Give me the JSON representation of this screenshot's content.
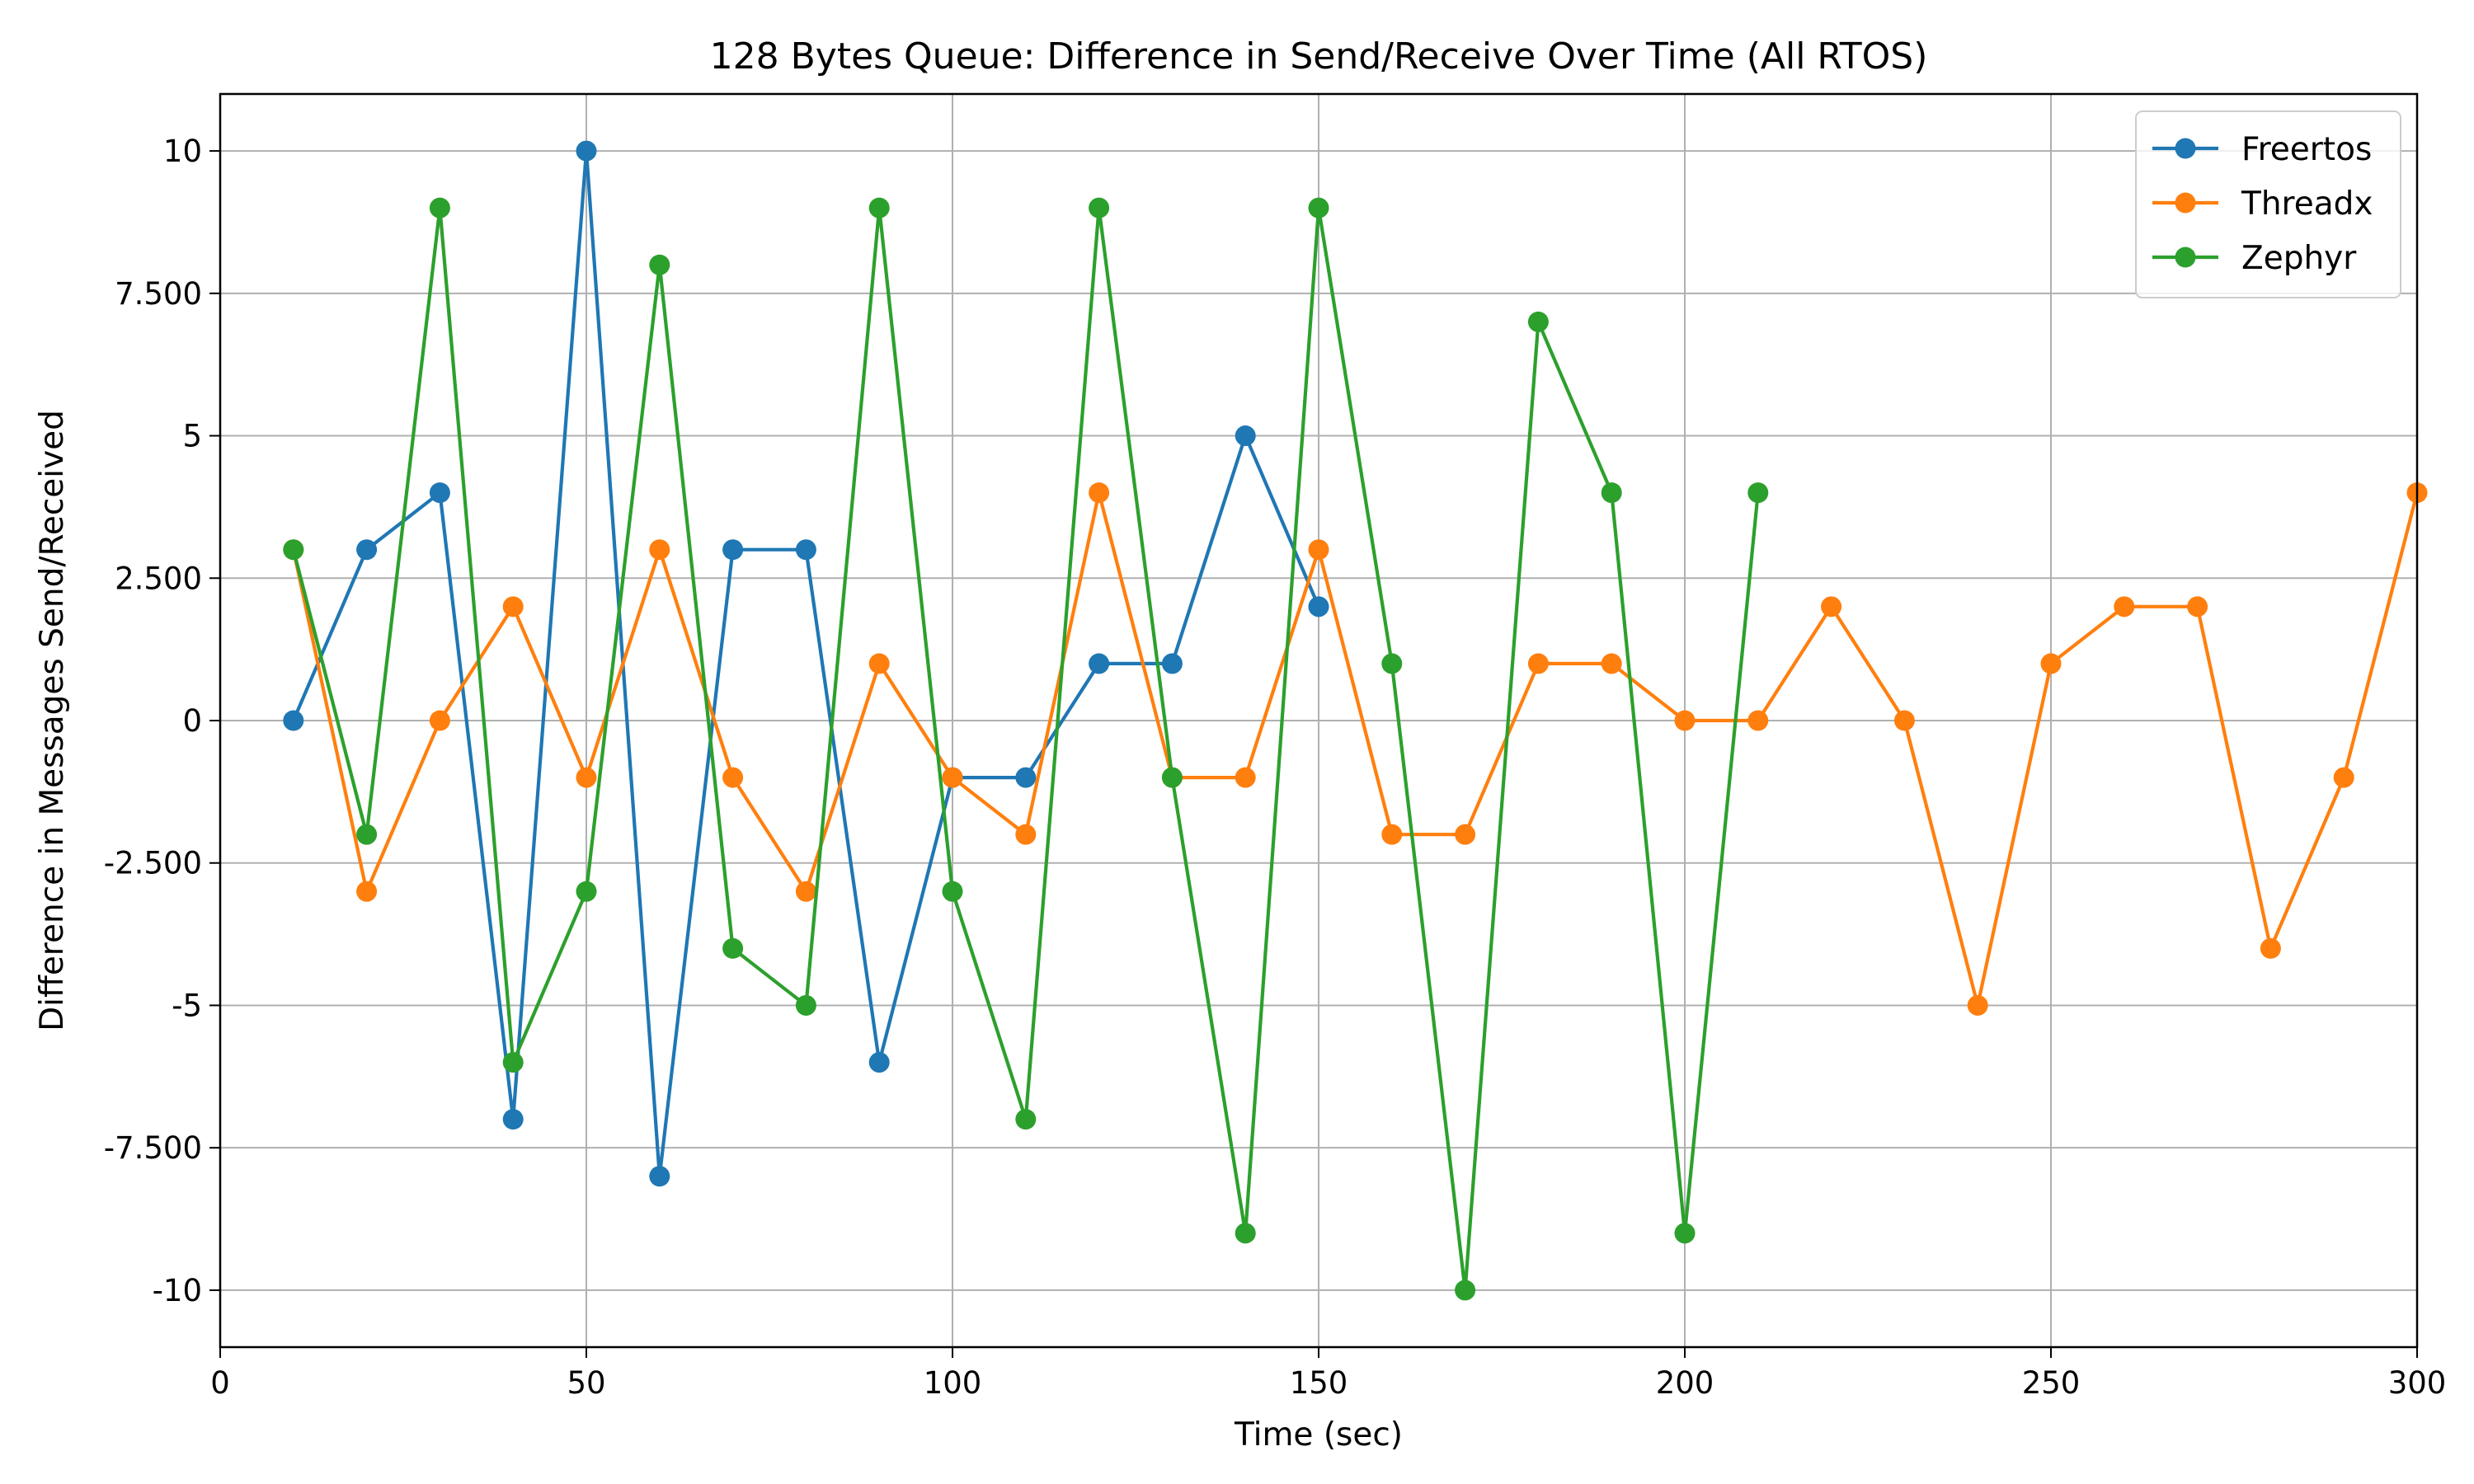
{
  "chart_data": {
    "type": "line",
    "title": "128 Bytes Queue: Difference in Send/Receive Over Time (All RTOS)",
    "xlabel": "Time (sec)",
    "ylabel": "Difference in Messages Send/Received",
    "xlim": [
      0,
      300
    ],
    "ylim": [
      -11,
      11
    ],
    "x_ticks": [
      0,
      50,
      100,
      150,
      200,
      250,
      300
    ],
    "x_tick_labels": [
      "0",
      "50",
      "100",
      "150",
      "200",
      "250",
      "300"
    ],
    "y_ticks": [
      10,
      7.5,
      5,
      2.5,
      0,
      -2.5,
      -5,
      -7.5,
      -10
    ],
    "y_tick_labels": [
      "10",
      "7.500",
      "5",
      "2.500",
      "0",
      "-2.500",
      "-5",
      "-7.500",
      "-10"
    ],
    "grid": true,
    "legend_position": "top-right",
    "series": [
      {
        "name": "Freertos",
        "color": "#1f77b4",
        "x": [
          10,
          20,
          30,
          40,
          50,
          60,
          70,
          80,
          90,
          100,
          110,
          120,
          130,
          140,
          150
        ],
        "values": [
          0,
          3,
          4,
          -7,
          10,
          -8,
          3,
          3,
          -6,
          -1,
          -1,
          1,
          1,
          5,
          2
        ]
      },
      {
        "name": "Threadx",
        "color": "#ff7f0e",
        "x": [
          10,
          20,
          30,
          40,
          50,
          60,
          70,
          80,
          90,
          100,
          110,
          120,
          130,
          140,
          150,
          160,
          170,
          180,
          190,
          200,
          210,
          220,
          230,
          240,
          250,
          260,
          270,
          280,
          290,
          300
        ],
        "values": [
          3,
          -3,
          0,
          2,
          -1,
          3,
          -1,
          -3,
          1,
          -1,
          -2,
          4,
          -1,
          -1,
          3,
          -2,
          -2,
          1,
          1,
          0,
          0,
          2,
          0,
          -5,
          1,
          2,
          2,
          -4,
          -1,
          4
        ]
      },
      {
        "name": "Zephyr",
        "color": "#2ca02c",
        "x": [
          10,
          20,
          30,
          40,
          50,
          60,
          70,
          80,
          90,
          100,
          110,
          120,
          130,
          140,
          150,
          160,
          170,
          180,
          190,
          200,
          210
        ],
        "values": [
          3,
          -2,
          9,
          -6,
          -3,
          8,
          -4,
          -5,
          9,
          -3,
          -7,
          9,
          -1,
          -9,
          9,
          1,
          -10,
          7,
          4,
          -9,
          4
        ]
      }
    ]
  }
}
